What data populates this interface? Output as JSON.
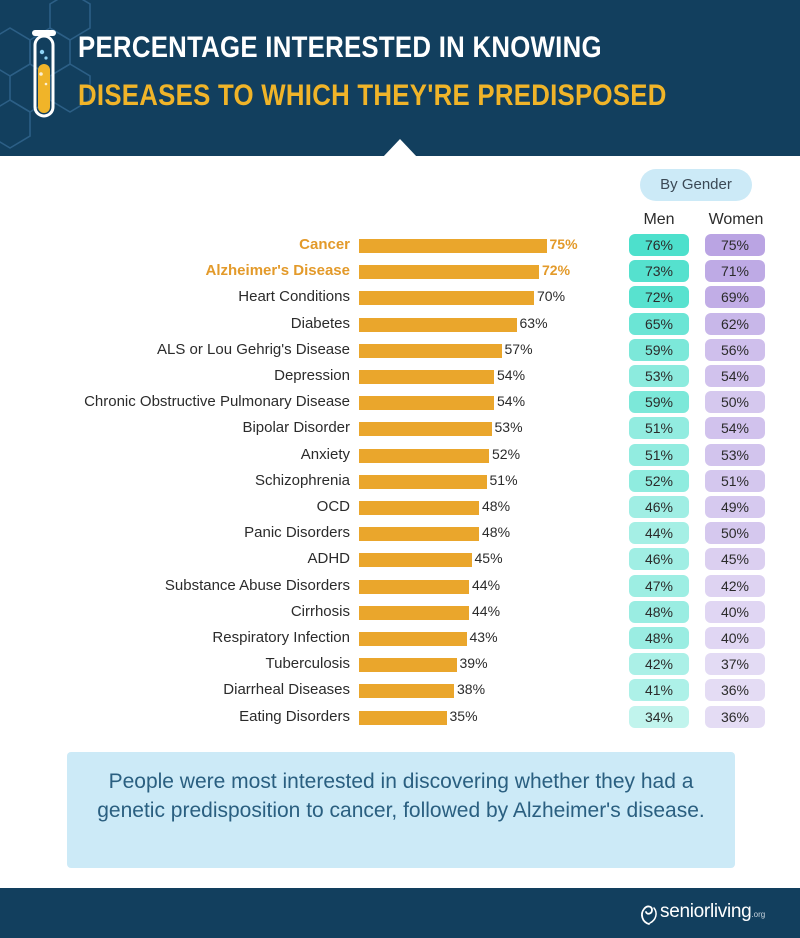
{
  "header": {
    "title_line1": "PERCENTAGE INTERESTED IN KNOWING",
    "title_line2": "DISEASES TO WHICH THEY'RE PREDISPOSED"
  },
  "gender_header": {
    "badge": "By Gender",
    "men": "Men",
    "women": "Women"
  },
  "summary": "People were most interested in discovering whether they had a genetic predisposition to cancer, followed by Alzheimer's disease.",
  "footer": {
    "brand": "seniorliving",
    "brand_suffix": ".org"
  },
  "colors": {
    "header_bg": "#123f5e",
    "title_accent": "#f0b429",
    "bar": "#eaa62c",
    "highlight_text": "#e39a2a",
    "men_pill": "#4de0cc",
    "women_pill": "#b9a3e3",
    "summary_bg": "#cceaf7",
    "summary_text": "#2a5f80"
  },
  "chart_data": {
    "type": "bar",
    "orientation": "horizontal",
    "categories": [
      "Cancer",
      "Alzheimer's Disease",
      "Heart Conditions",
      "Diabetes",
      "ALS or Lou Gehrig's Disease",
      "Depression",
      "Chronic Obstructive Pulmonary Disease",
      "Bipolar Disorder",
      "Anxiety",
      "Schizophrenia",
      "OCD",
      "Panic Disorders",
      "ADHD",
      "Substance Abuse Disorders",
      "Cirrhosis",
      "Respiratory Infection",
      "Tuberculosis",
      "Diarrheal Diseases",
      "Eating Disorders"
    ],
    "values": [
      75,
      72,
      70,
      63,
      57,
      54,
      54,
      53,
      52,
      51,
      48,
      48,
      45,
      44,
      44,
      43,
      39,
      38,
      35
    ],
    "highlighted": [
      "Cancer",
      "Alzheimer's Disease"
    ],
    "unit": "%",
    "xlim": [
      0,
      100
    ],
    "by_gender": {
      "men": [
        76,
        73,
        72,
        65,
        59,
        53,
        59,
        51,
        51,
        52,
        46,
        44,
        46,
        47,
        48,
        48,
        42,
        41,
        34
      ],
      "women": [
        75,
        71,
        69,
        62,
        56,
        54,
        50,
        54,
        53,
        51,
        49,
        50,
        45,
        42,
        40,
        40,
        37,
        36,
        36
      ]
    }
  }
}
